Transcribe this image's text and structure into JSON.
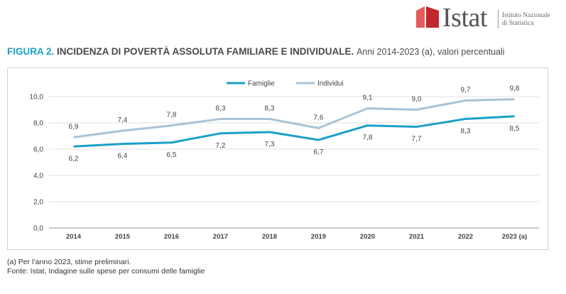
{
  "logo": {
    "wordmark": "Istat",
    "subtitle_line1": "Istituto Nazionale",
    "subtitle_line2": "di Statistica"
  },
  "figure": {
    "label": "FIGURA 2.",
    "title": "INCIDENZA DI POVERTÀ ASSOLUTA FAMILIARE E INDIVIDUALE.",
    "subtitle": "Anni 2014-2023 (a), valori percentuali"
  },
  "notes": {
    "note_a": "(a)   Per l’anno 2023, stime preliminari.",
    "source": "Fonte: Istat, Indagine sulle spese per consumi delle famiglie"
  },
  "colors": {
    "famiglie": "#1aa0c7",
    "individui": "#a9c3d6",
    "grid": "#e2e2e2"
  },
  "chart_data": {
    "type": "line",
    "title": "INCIDENZA DI POVERTÀ ASSOLUTA FAMILIARE E INDIVIDUALE.",
    "categories": [
      "2014",
      "2015",
      "2016",
      "2017",
      "2018",
      "2019",
      "2020",
      "2021",
      "2022",
      "2023 (a)"
    ],
    "series": [
      {
        "name": "Famiglie",
        "values": [
          6.2,
          6.4,
          6.5,
          7.2,
          7.3,
          6.7,
          7.8,
          7.7,
          8.3,
          8.5
        ],
        "labels": [
          "6,2",
          "6,4",
          "6,5",
          "7,2",
          "7,3",
          "6,7",
          "7,8",
          "7,7",
          "8,3",
          "8,5"
        ]
      },
      {
        "name": "Individui",
        "values": [
          6.9,
          7.4,
          7.8,
          8.3,
          8.3,
          7.6,
          9.1,
          9.0,
          9.7,
          9.8
        ],
        "labels": [
          "6,9",
          "7,4",
          "7,8",
          "8,3",
          "8,3",
          "7,6",
          "9,1",
          "9,0",
          "9,7",
          "9,8"
        ]
      }
    ],
    "yticks": [
      0,
      2,
      4,
      6,
      8,
      10
    ],
    "ytick_labels": [
      "0,0",
      "2,0",
      "4,0",
      "6,0",
      "8,0",
      "10,0"
    ],
    "ylim": [
      0,
      10
    ],
    "legend": "top-center",
    "grid": true,
    "xlabel": "",
    "ylabel": ""
  }
}
